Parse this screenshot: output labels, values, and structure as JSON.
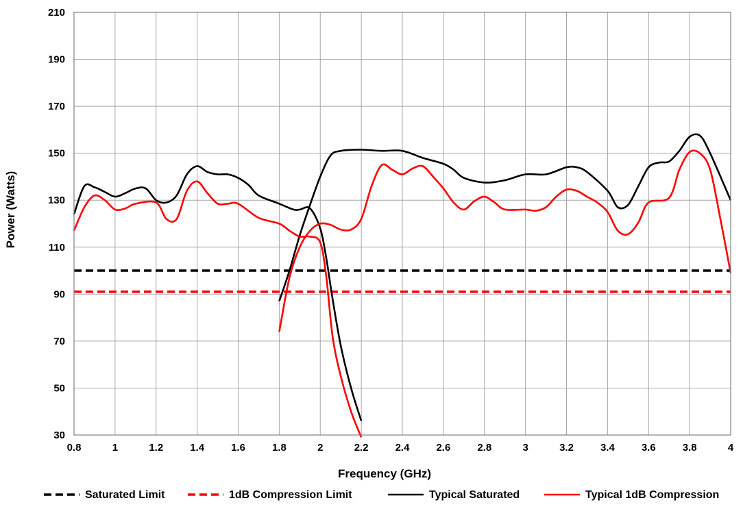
{
  "chart_data": {
    "type": "line",
    "title": "",
    "xlabel": "Frequency (GHz)",
    "ylabel": "Power (Watts)",
    "xlim": [
      0.8,
      4
    ],
    "ylim": [
      30,
      210
    ],
    "grid": true,
    "legend_placement": "bottom",
    "x_ticks": [
      "0.8",
      "1",
      "1.2",
      "1.4",
      "1.6",
      "1.8",
      "2",
      "2.2",
      "2.4",
      "2.6",
      "2.8",
      "3",
      "3.2",
      "3.4",
      "3.6",
      "3.8",
      "4"
    ],
    "y_ticks": [
      "210",
      "190",
      "170",
      "150",
      "130",
      "110",
      "90",
      "70",
      "50",
      "30"
    ],
    "series": [
      {
        "name": "Saturated Limit",
        "color": "#000000",
        "style": "dashed",
        "points": [
          [
            0.8,
            100
          ],
          [
            4.0,
            100
          ]
        ]
      },
      {
        "name": "1dB Compression Limit",
        "color": "#ff0000",
        "style": "dashed",
        "points": [
          [
            0.8,
            91
          ],
          [
            4.0,
            91
          ]
        ]
      },
      {
        "name": "Typical Saturated",
        "color": "#000000",
        "style": "solid",
        "segments": [
          [
            [
              0.8,
              124
            ],
            [
              0.85,
              136
            ],
            [
              0.9,
              135.5
            ],
            [
              0.95,
              133.5
            ],
            [
              1.0,
              131.5
            ],
            [
              1.05,
              133
            ],
            [
              1.1,
              135
            ],
            [
              1.15,
              135
            ],
            [
              1.2,
              130
            ],
            [
              1.25,
              129
            ],
            [
              1.3,
              132
            ],
            [
              1.35,
              141
            ],
            [
              1.4,
              144.5
            ],
            [
              1.45,
              142
            ],
            [
              1.5,
              141
            ],
            [
              1.55,
              141
            ],
            [
              1.6,
              139.5
            ],
            [
              1.65,
              136.5
            ],
            [
              1.7,
              132
            ],
            [
              1.8,
              128.5
            ],
            [
              1.87,
              126
            ],
            [
              1.9,
              126
            ],
            [
              1.95,
              126.5
            ],
            [
              2.0,
              118
            ],
            [
              2.03,
              105
            ],
            [
              2.06,
              88
            ],
            [
              2.1,
              68
            ],
            [
              2.15,
              50
            ],
            [
              2.2,
              36
            ]
          ],
          [
            [
              1.8,
              87
            ],
            [
              1.85,
              100
            ],
            [
              1.9,
              115
            ],
            [
              1.95,
              128
            ],
            [
              2.0,
              140
            ],
            [
              2.05,
              149
            ],
            [
              2.1,
              151
            ],
            [
              2.2,
              151.5
            ],
            [
              2.3,
              151
            ],
            [
              2.4,
              151
            ],
            [
              2.5,
              148
            ],
            [
              2.6,
              145.5
            ],
            [
              2.65,
              143
            ],
            [
              2.7,
              139.5
            ],
            [
              2.8,
              137.5
            ],
            [
              2.9,
              138.5
            ],
            [
              3.0,
              141
            ],
            [
              3.1,
              141
            ],
            [
              3.2,
              144
            ],
            [
              3.25,
              144
            ],
            [
              3.3,
              142
            ],
            [
              3.4,
              134
            ],
            [
              3.45,
              127
            ],
            [
              3.5,
              128
            ],
            [
              3.55,
              136
            ],
            [
              3.6,
              144
            ],
            [
              3.65,
              146
            ],
            [
              3.7,
              146.5
            ],
            [
              3.75,
              151
            ],
            [
              3.8,
              157
            ],
            [
              3.85,
              157.5
            ],
            [
              3.9,
              150
            ],
            [
              4.0,
              130
            ]
          ]
        ]
      },
      {
        "name": "Typical 1dB Compression",
        "color": "#ff0000",
        "style": "solid",
        "segments": [
          [
            [
              0.8,
              117
            ],
            [
              0.85,
              127
            ],
            [
              0.9,
              132
            ],
            [
              0.95,
              130
            ],
            [
              1.0,
              126
            ],
            [
              1.05,
              126.5
            ],
            [
              1.1,
              128.5
            ],
            [
              1.2,
              129
            ],
            [
              1.25,
              122
            ],
            [
              1.3,
              122
            ],
            [
              1.35,
              134
            ],
            [
              1.4,
              138
            ],
            [
              1.45,
              133
            ],
            [
              1.5,
              128.5
            ],
            [
              1.55,
              128.5
            ],
            [
              1.6,
              128.5
            ],
            [
              1.7,
              122.5
            ],
            [
              1.8,
              120
            ],
            [
              1.85,
              117
            ],
            [
              1.9,
              114.5
            ],
            [
              1.95,
              114.5
            ],
            [
              2.0,
              112
            ],
            [
              2.03,
              97
            ],
            [
              2.06,
              72
            ],
            [
              2.1,
              55
            ],
            [
              2.15,
              40
            ],
            [
              2.2,
              29
            ]
          ],
          [
            [
              1.8,
              74
            ],
            [
              1.85,
              97
            ],
            [
              1.9,
              110
            ],
            [
              1.95,
              117
            ],
            [
              2.0,
              120
            ],
            [
              2.05,
              119.5
            ],
            [
              2.1,
              117.5
            ],
            [
              2.15,
              117.5
            ],
            [
              2.2,
              122
            ],
            [
              2.25,
              136
            ],
            [
              2.3,
              145
            ],
            [
              2.35,
              143
            ],
            [
              2.4,
              141
            ],
            [
              2.45,
              143.5
            ],
            [
              2.5,
              144.5
            ],
            [
              2.55,
              140
            ],
            [
              2.6,
              135
            ],
            [
              2.65,
              129
            ],
            [
              2.7,
              126
            ],
            [
              2.75,
              129.5
            ],
            [
              2.8,
              131.5
            ],
            [
              2.85,
              129
            ],
            [
              2.9,
              126
            ],
            [
              3.0,
              126
            ],
            [
              3.05,
              125.5
            ],
            [
              3.1,
              127
            ],
            [
              3.15,
              131.5
            ],
            [
              3.2,
              134.5
            ],
            [
              3.25,
              134
            ],
            [
              3.3,
              131.5
            ],
            [
              3.35,
              129
            ],
            [
              3.4,
              125
            ],
            [
              3.45,
              117
            ],
            [
              3.5,
              115.5
            ],
            [
              3.55,
              120.5
            ],
            [
              3.6,
              129
            ],
            [
              3.7,
              131
            ],
            [
              3.75,
              143
            ],
            [
              3.8,
              150.5
            ],
            [
              3.85,
              150
            ],
            [
              3.9,
              143
            ],
            [
              3.95,
              122
            ],
            [
              4.0,
              99
            ]
          ]
        ]
      }
    ]
  }
}
